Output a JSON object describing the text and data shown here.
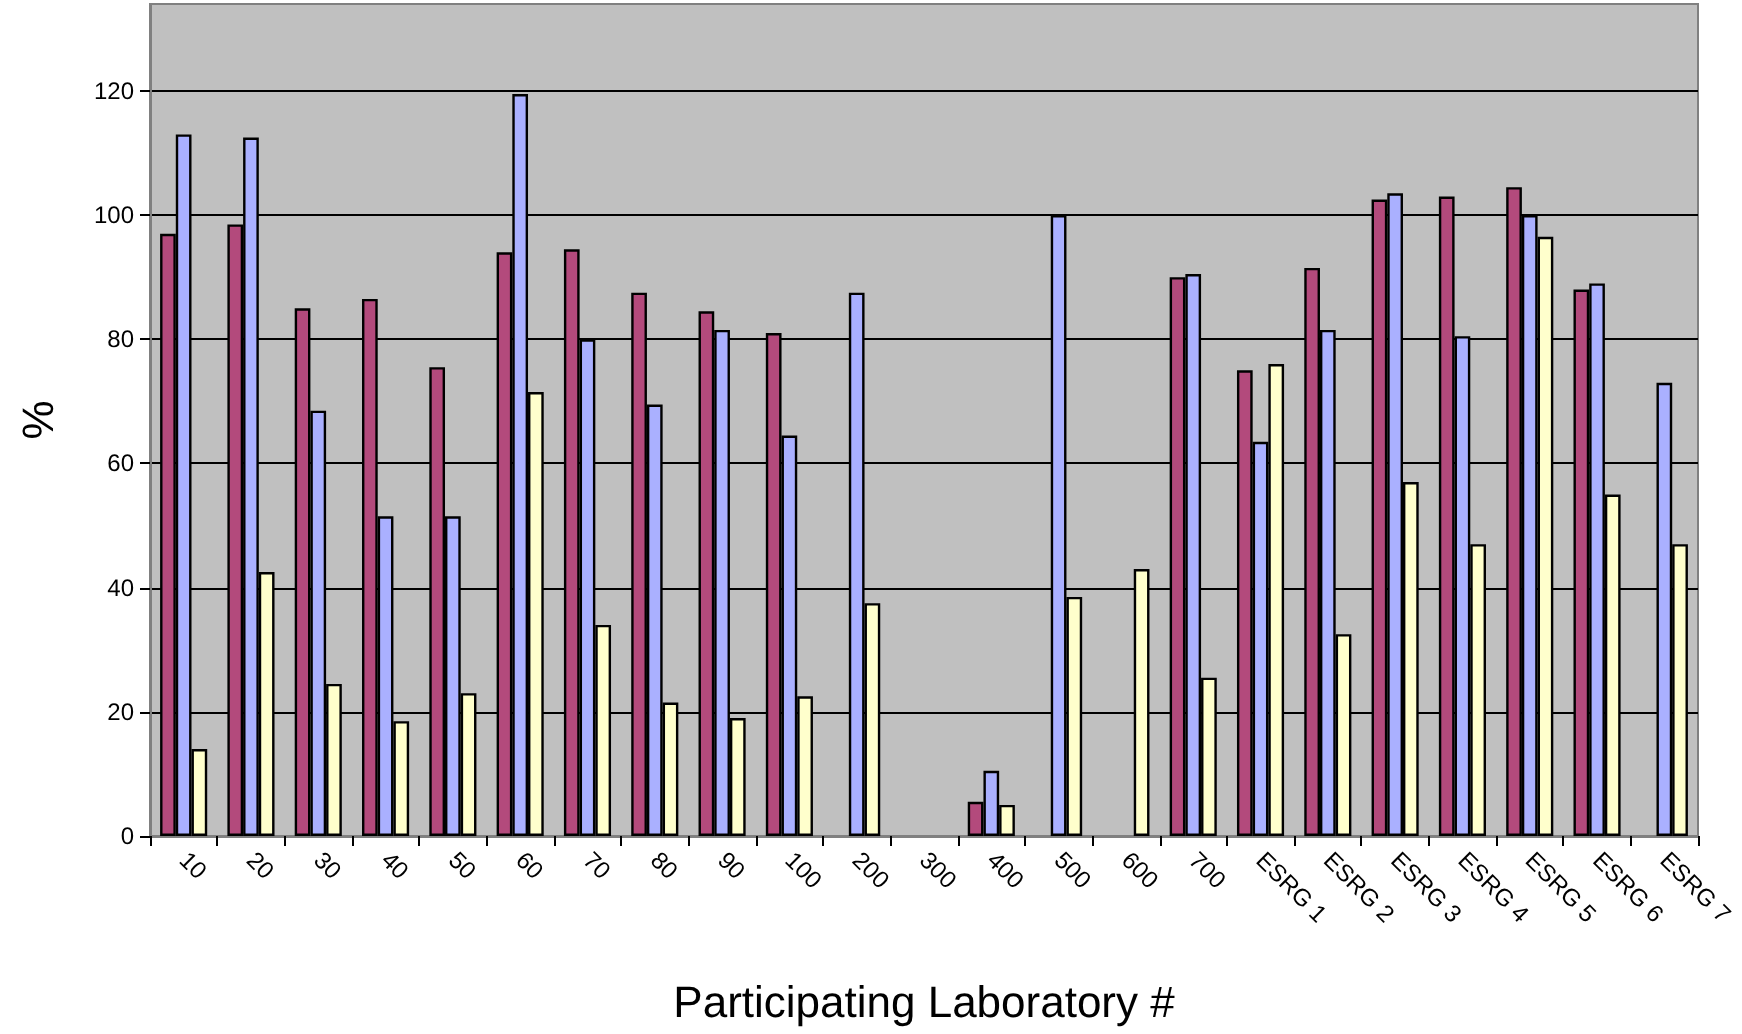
{
  "chart_data": {
    "type": "bar",
    "xlabel": "Participating Laboratory #",
    "ylabel": "%",
    "categories": [
      "10",
      "20",
      "30",
      "40",
      "50",
      "60",
      "70",
      "80",
      "90",
      "100",
      "200",
      "300",
      "400",
      "500",
      "600",
      "700",
      "ESRG 1",
      "ESRG 2",
      "ESRG 3",
      "ESRG 4",
      "ESRG 5",
      "ESRG 6",
      "ESRG 7"
    ],
    "series": [
      {
        "color": "#b34a7c",
        "values": [
          97,
          98.5,
          85,
          86.5,
          75.5,
          94,
          94.5,
          87.5,
          84.5,
          81,
          null,
          null,
          5.5,
          null,
          null,
          90,
          75,
          91.5,
          102.5,
          103,
          104.5,
          88,
          null
        ]
      },
      {
        "color": "#aab0ff",
        "values": [
          113,
          112.5,
          68.5,
          51.5,
          51.5,
          119.5,
          80,
          69.5,
          81.5,
          64.5,
          87.5,
          null,
          10.5,
          100,
          null,
          90.5,
          63.5,
          81.5,
          103.5,
          80.5,
          100,
          89,
          73
        ]
      },
      {
        "color": "#ffffcc",
        "values": [
          14,
          42.5,
          24.5,
          18.5,
          23,
          71.5,
          34,
          21.5,
          19,
          22.5,
          37.5,
          null,
          5,
          38.5,
          43,
          25.5,
          76,
          32.5,
          57,
          47,
          96.5,
          55,
          47
        ]
      }
    ],
    "ylim": [
      0,
      134
    ],
    "yticks": [
      0,
      20,
      40,
      60,
      80,
      100,
      120
    ],
    "grid": "y"
  }
}
